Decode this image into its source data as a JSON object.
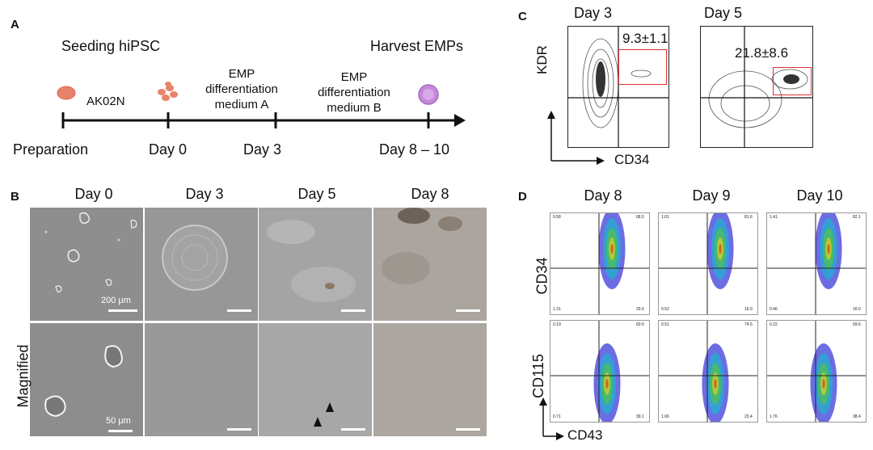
{
  "panel_letters": {
    "a": "A",
    "b": "B",
    "c": "C",
    "d": "D"
  },
  "panelA": {
    "seeding": "Seeding hiPSC",
    "harvest": "Harvest EMPs",
    "ak02n": "AK02N",
    "medium_a": [
      "EMP",
      "differentiation",
      "medium A"
    ],
    "medium_b": [
      "EMP",
      "differentiation",
      "medium B"
    ],
    "timepoints": [
      "Preparation",
      "Day 0",
      "Day 3",
      "Day 8 – 10"
    ],
    "colors": {
      "cell": "#e8836b",
      "emp": "#c58ad8",
      "axis": "#111111"
    }
  },
  "panelB": {
    "columns": [
      "Day 0",
      "Day 3",
      "Day 5",
      "Day 8"
    ],
    "row_label": "Magnified",
    "scale_top": "200 μm",
    "scale_bottom": "50 μm"
  },
  "panelC": {
    "days": [
      "Day 3",
      "Day 5"
    ],
    "gate_values": [
      "9.3±1.1",
      "21.8±8.6"
    ],
    "y_axis": "KDR",
    "x_axis": "CD34",
    "gate_color": "#e03030"
  },
  "panelD": {
    "days": [
      "Day 8",
      "Day 9",
      "Day 10"
    ],
    "row_labels": [
      "CD34",
      "CD115"
    ],
    "x_axis": "CD43",
    "quadrants": {
      "cd34": [
        [
          "0.58",
          "68.5",
          "1.31",
          "29.6"
        ],
        [
          "1.01",
          "81.6",
          "0.52",
          "16.9"
        ],
        [
          "1.41",
          "82.1",
          "0.46",
          "16.0"
        ]
      ],
      "cd115": [
        [
          "0.19",
          "60.0",
          "0.71",
          "39.1"
        ],
        [
          "0.51",
          "74.5",
          "1.66",
          "23.4"
        ],
        [
          "0.22",
          "59.6",
          "1.76",
          "38.4"
        ]
      ]
    }
  }
}
